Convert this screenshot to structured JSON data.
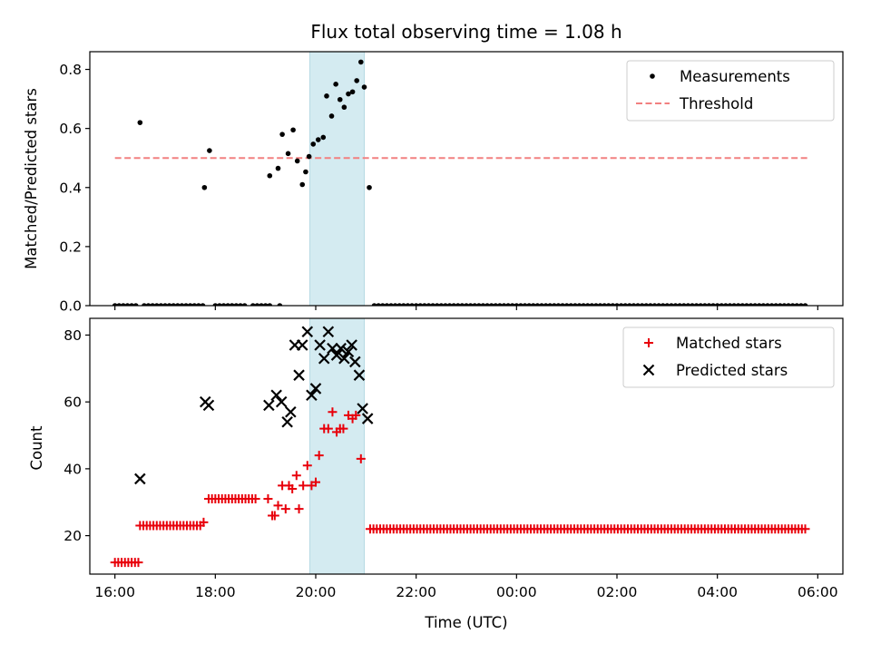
{
  "chart_data": [
    {
      "type": "scatter",
      "title": "Flux total observing time = 1.08 h",
      "xlabel": "",
      "ylabel": "Matched/Predicted stars",
      "xlim": [
        "15:30",
        "06:30 (+1d)"
      ],
      "ylim": [
        0,
        0.86
      ],
      "yticks": [
        0.0,
        0.2,
        0.4,
        0.6,
        0.8
      ],
      "ytick_labels": [
        "0.0",
        "0.2",
        "0.4",
        "0.6",
        "0.8"
      ],
      "shaded_interval": [
        "19:53",
        "20:58"
      ],
      "shade_color": "#d4ebf1",
      "legend": {
        "position": "top-right",
        "entries": [
          "Measurements",
          "Threshold"
        ]
      },
      "threshold": {
        "name": "Threshold",
        "y": 0.5,
        "x_range": [
          "16:00",
          "05:48 (+1d)"
        ],
        "color": "#f28080"
      },
      "series": [
        {
          "name": "Measurements",
          "marker": "dot",
          "color": "#000000",
          "zero_runs": [
            [
              "16:00",
              "16:28"
            ],
            [
              "16:35",
              "17:45"
            ],
            [
              "18:00",
              "18:35"
            ],
            [
              "18:45",
              "19:05"
            ],
            [
              "19:17",
              "19:17"
            ],
            [
              "21:10",
              "05:45 (+1d)"
            ]
          ],
          "zero_step_minutes": 5,
          "points": [
            [
              "16:30",
              0.62
            ],
            [
              "17:47",
              0.4
            ],
            [
              "17:53",
              0.525
            ],
            [
              "19:05",
              0.44
            ],
            [
              "19:15",
              0.465
            ],
            [
              "19:20",
              0.58
            ],
            [
              "19:27",
              0.515
            ],
            [
              "19:33",
              0.595
            ],
            [
              "19:38",
              0.49
            ],
            [
              "19:44",
              0.41
            ],
            [
              "19:48",
              0.453
            ],
            [
              "19:52",
              0.505
            ],
            [
              "19:57",
              0.547
            ],
            [
              "20:03",
              0.562
            ],
            [
              "20:09",
              0.57
            ],
            [
              "20:13",
              0.71
            ],
            [
              "20:19",
              0.642
            ],
            [
              "20:24",
              0.75
            ],
            [
              "20:29",
              0.698
            ],
            [
              "20:34",
              0.672
            ],
            [
              "20:39",
              0.717
            ],
            [
              "20:44",
              0.724
            ],
            [
              "20:49",
              0.762
            ],
            [
              "20:54",
              0.825
            ],
            [
              "20:58",
              0.74
            ],
            [
              "21:04",
              0.4
            ]
          ]
        }
      ]
    },
    {
      "type": "scatter",
      "title": "",
      "xlabel": "Time (UTC)",
      "ylabel": "Count",
      "xlim": [
        "15:30",
        "06:30 (+1d)"
      ],
      "ylim": [
        8.5,
        85
      ],
      "yticks": [
        20,
        40,
        60,
        80
      ],
      "ytick_labels": [
        "20",
        "40",
        "60",
        "80"
      ],
      "xticks": [
        "16:00",
        "18:00",
        "20:00",
        "22:00",
        "00:00 (+1d)",
        "02:00 (+1d)",
        "04:00 (+1d)",
        "06:00 (+1d)"
      ],
      "xtick_labels": [
        "16:00",
        "18:00",
        "20:00",
        "22:00",
        "00:00",
        "02:00",
        "04:00",
        "06:00"
      ],
      "shaded_interval": [
        "19:53",
        "20:58"
      ],
      "shade_color": "#d4ebf1",
      "legend": {
        "position": "top-right",
        "entries": [
          "Matched stars",
          "Predicted stars"
        ]
      },
      "series": [
        {
          "name": "Matched stars",
          "marker": "plus",
          "color": "#e8000b",
          "runs": [
            {
              "from": "16:00",
              "to": "16:28",
              "y": 12
            },
            {
              "from": "16:30",
              "to": "17:42",
              "y": 23
            },
            {
              "from": "17:52",
              "to": "18:50",
              "y": 31
            },
            {
              "from": "21:05",
              "to": "05:48 (+1d)",
              "y": 22
            }
          ],
          "run_step_minutes": 4,
          "points": [
            [
              "17:46",
              24
            ],
            [
              "19:03",
              31
            ],
            [
              "19:08",
              26
            ],
            [
              "19:11",
              26
            ],
            [
              "19:15",
              29
            ],
            [
              "19:20",
              35
            ],
            [
              "19:24",
              28
            ],
            [
              "19:28",
              35
            ],
            [
              "19:32",
              34
            ],
            [
              "19:37",
              38
            ],
            [
              "19:40",
              28
            ],
            [
              "19:45",
              35
            ],
            [
              "19:50",
              41
            ],
            [
              "19:55",
              35
            ],
            [
              "20:00",
              36
            ],
            [
              "20:04",
              44
            ],
            [
              "20:10",
              52
            ],
            [
              "20:15",
              52
            ],
            [
              "20:20",
              57
            ],
            [
              "20:25",
              51
            ],
            [
              "20:29",
              52
            ],
            [
              "20:33",
              52
            ],
            [
              "20:39",
              56
            ],
            [
              "20:44",
              55
            ],
            [
              "20:48",
              56
            ],
            [
              "20:54",
              43
            ]
          ]
        },
        {
          "name": "Predicted stars",
          "marker": "x",
          "color": "#000000",
          "points": [
            [
              "16:30",
              37
            ],
            [
              "17:48",
              60
            ],
            [
              "17:52",
              59
            ],
            [
              "19:04",
              59
            ],
            [
              "19:13",
              62
            ],
            [
              "19:19",
              60
            ],
            [
              "19:26",
              54
            ],
            [
              "19:30",
              57
            ],
            [
              "19:35",
              77
            ],
            [
              "19:40",
              68
            ],
            [
              "19:44",
              77
            ],
            [
              "19:50",
              81
            ],
            [
              "19:55",
              62
            ],
            [
              "20:00",
              64
            ],
            [
              "20:05",
              77
            ],
            [
              "20:10",
              73
            ],
            [
              "20:15",
              81
            ],
            [
              "20:20",
              76
            ],
            [
              "20:25",
              74
            ],
            [
              "20:30",
              76
            ],
            [
              "20:34",
              73
            ],
            [
              "20:39",
              75
            ],
            [
              "20:43",
              77
            ],
            [
              "20:47",
              72
            ],
            [
              "20:52",
              68
            ],
            [
              "20:56",
              58
            ],
            [
              "21:02",
              55
            ]
          ]
        }
      ]
    }
  ]
}
